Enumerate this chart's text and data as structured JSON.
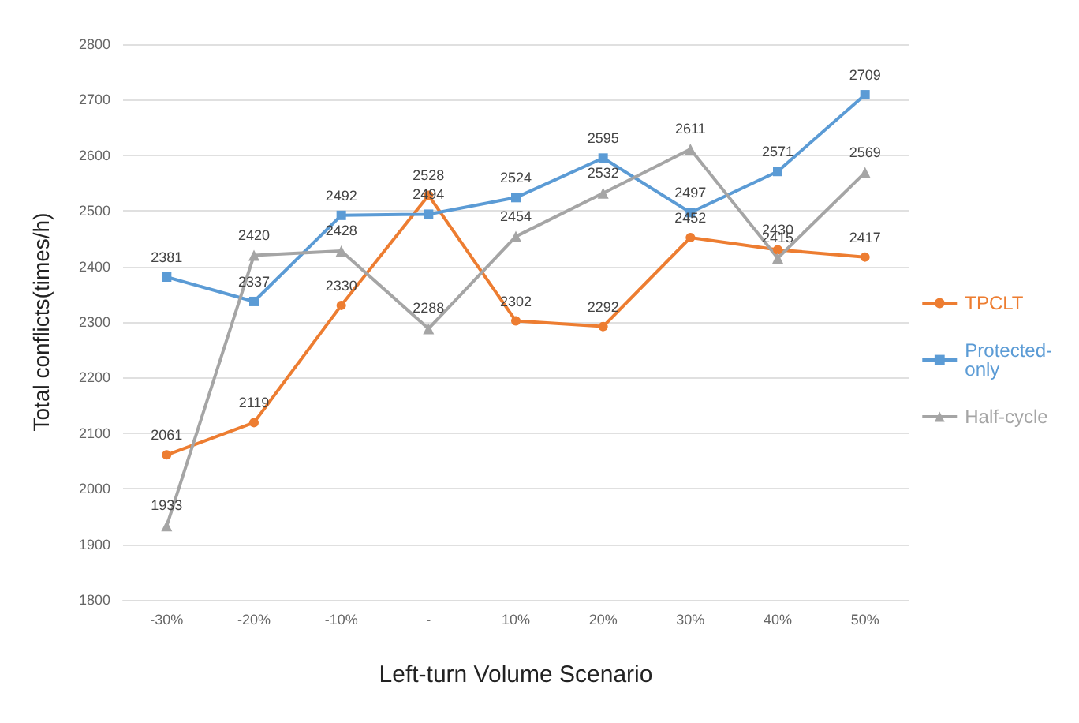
{
  "chart_data": {
    "type": "line",
    "xlabel": "Left-turn Volume Scenario",
    "ylabel": "Total conflicts(times/h)",
    "categories": [
      "-30%",
      "-20%",
      "-10%",
      "-",
      "10%",
      "20%",
      "30%",
      "40%",
      "50%"
    ],
    "series": [
      {
        "name": "TPCLT",
        "color": "#ed7d31",
        "marker": "circle",
        "values": [
          2061,
          2119,
          2330,
          2528,
          2302,
          2292,
          2452,
          2430,
          2417
        ]
      },
      {
        "name": "Protected-only",
        "color": "#5b9bd5",
        "marker": "square",
        "values": [
          2381,
          2337,
          2492,
          2494,
          2524,
          2595,
          2497,
          2571,
          2709
        ]
      },
      {
        "name": "Half-cycle",
        "color": "#a5a5a5",
        "marker": "triangle",
        "values": [
          1933,
          2420,
          2428,
          2288,
          2454,
          2532,
          2611,
          2415,
          2569
        ]
      }
    ],
    "ylim": [
      1800,
      2800
    ],
    "yticks": [
      1800,
      1900,
      2000,
      2100,
      2200,
      2300,
      2400,
      2500,
      2600,
      2700,
      2800
    ],
    "grid": "y",
    "legend": "right",
    "data_labels": true
  }
}
